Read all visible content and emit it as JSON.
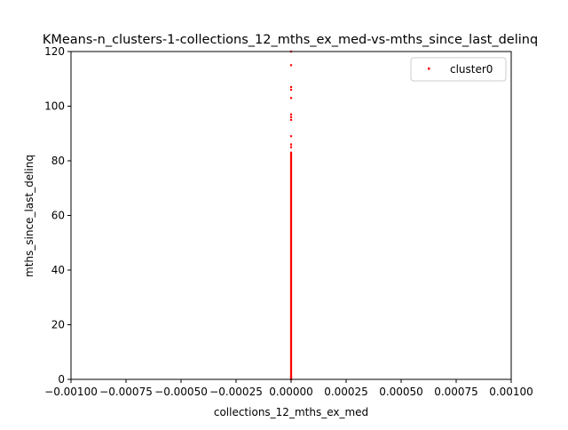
{
  "chart_data": {
    "type": "scatter",
    "title": "KMeans-n_clusters-1-collections_12_mths_ex_med-vs-mths_since_last_delinq",
    "xlabel": "collections_12_mths_ex_med",
    "ylabel": "mths_since_last_delinq",
    "xlim": [
      -0.001,
      0.001
    ],
    "ylim": [
      0,
      120
    ],
    "xticks": [
      -0.001,
      -0.00075,
      -0.0005,
      -0.00025,
      0,
      0.00025,
      0.0005,
      0.00075,
      0.001
    ],
    "xtick_labels": [
      "−0.00100",
      "−0.00075",
      "−0.00050",
      "−0.00025",
      "0.00000",
      "0.00025",
      "0.00050",
      "0.00075",
      "0.00100"
    ],
    "yticks": [
      0,
      20,
      40,
      60,
      80,
      100,
      120
    ],
    "ytick_labels": [
      "0",
      "20",
      "40",
      "60",
      "80",
      "100",
      "120"
    ],
    "grid": false,
    "legend_position": "top-right",
    "series": [
      {
        "name": "cluster0",
        "color": "#ff0000",
        "x": [
          0
        ],
        "y_dense_range": [
          0,
          83
        ],
        "y_outliers": [
          85,
          86,
          89,
          95,
          96,
          97,
          103,
          106,
          107,
          115,
          120
        ]
      }
    ]
  }
}
